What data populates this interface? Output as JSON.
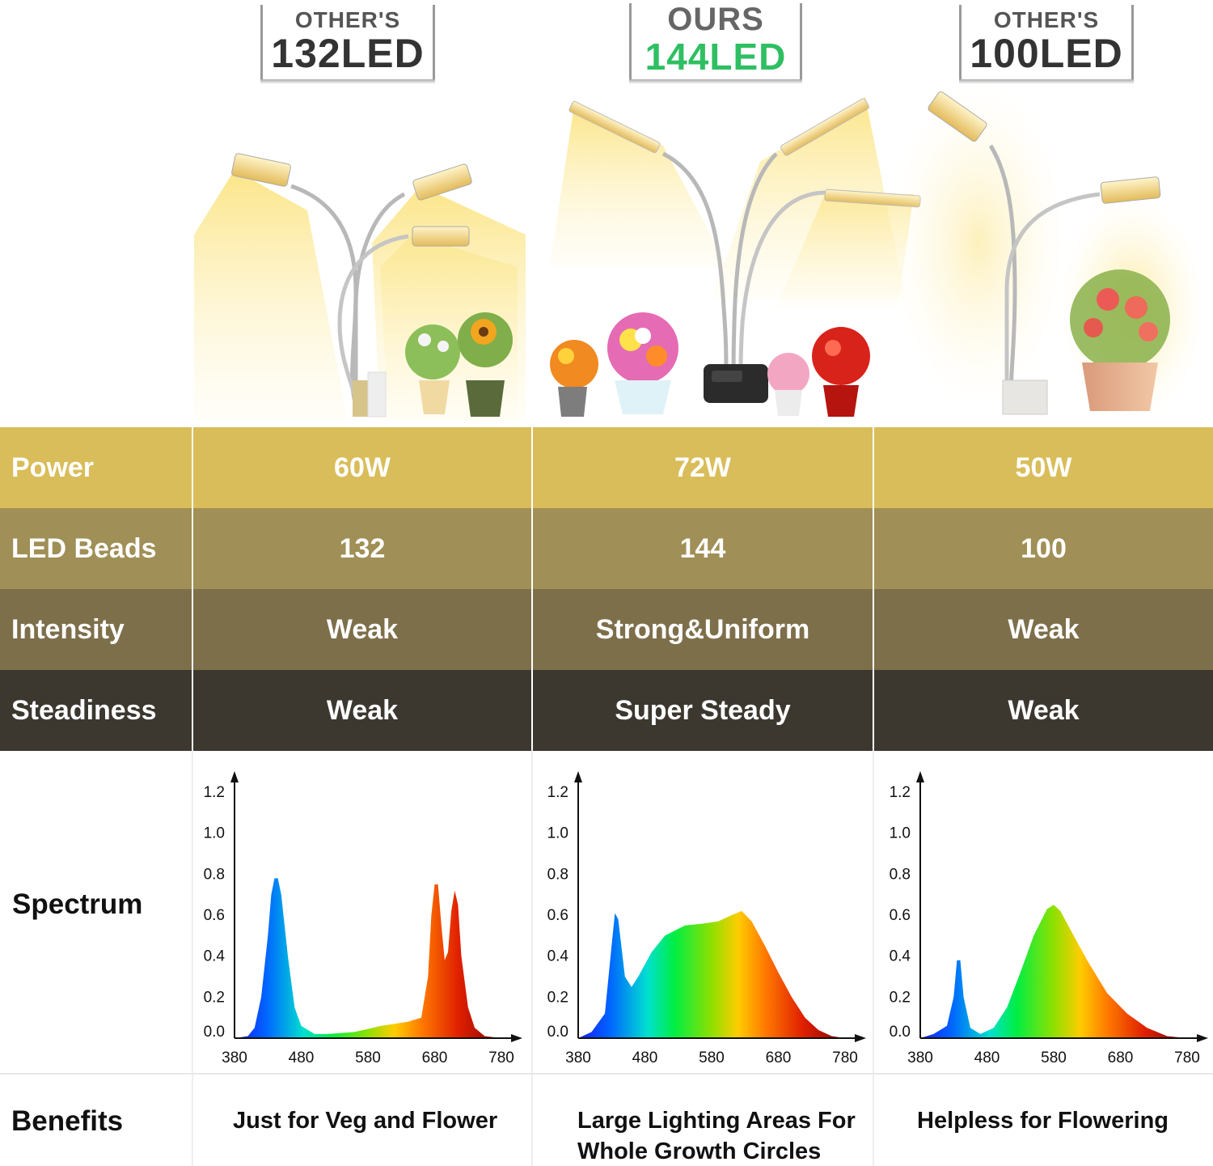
{
  "columns": [
    {
      "top": "OTHER'S",
      "bottom": "132LED",
      "ours": false
    },
    {
      "top": "OURS",
      "bottom": "144LED",
      "ours": true
    },
    {
      "top": "OTHER'S",
      "bottom": "100LED",
      "ours": false
    }
  ],
  "rows": [
    {
      "label": "Power",
      "values": [
        "60W",
        "72W",
        "50W"
      ],
      "color": "#d9bd5a"
    },
    {
      "label": "LED Beads",
      "values": [
        "132",
        "144",
        "100"
      ],
      "color": "#a08f56"
    },
    {
      "label": "Intensity",
      "values": [
        "Weak",
        "Strong&Uniform",
        "Weak"
      ],
      "color": "#7e6f4b"
    },
    {
      "label": "Steadiness",
      "values": [
        "Weak",
        "Super Steady",
        "Weak"
      ],
      "color": "#3c3830"
    }
  ],
  "spectrum_label": "Spectrum",
  "benefits_label": "Benefits",
  "benefits": [
    "Just for Veg and Flower",
    "Large Lighting Areas For Whole Growth Circles",
    "Helpless for Flowering"
  ],
  "chart_data": [
    {
      "type": "area",
      "x_ticks": [
        380,
        480,
        580,
        680,
        780
      ],
      "y_ticks": [
        0.0,
        0.2,
        0.4,
        0.6,
        0.8,
        1.0,
        1.2
      ],
      "xlim": [
        380,
        780
      ],
      "ylim": [
        0,
        1.2
      ],
      "points": [
        [
          380,
          0
        ],
        [
          400,
          0.01
        ],
        [
          410,
          0.05
        ],
        [
          420,
          0.2
        ],
        [
          430,
          0.5
        ],
        [
          435,
          0.7
        ],
        [
          440,
          0.78
        ],
        [
          445,
          0.78
        ],
        [
          450,
          0.7
        ],
        [
          460,
          0.4
        ],
        [
          470,
          0.15
        ],
        [
          480,
          0.06
        ],
        [
          500,
          0.02
        ],
        [
          520,
          0.02
        ],
        [
          560,
          0.03
        ],
        [
          600,
          0.06
        ],
        [
          640,
          0.08
        ],
        [
          660,
          0.1
        ],
        [
          670,
          0.3
        ],
        [
          675,
          0.6
        ],
        [
          680,
          0.75
        ],
        [
          685,
          0.75
        ],
        [
          690,
          0.55
        ],
        [
          695,
          0.38
        ],
        [
          700,
          0.42
        ],
        [
          705,
          0.62
        ],
        [
          710,
          0.72
        ],
        [
          715,
          0.65
        ],
        [
          720,
          0.4
        ],
        [
          730,
          0.15
        ],
        [
          740,
          0.05
        ],
        [
          755,
          0.01
        ],
        [
          780,
          0
        ]
      ]
    },
    {
      "type": "area",
      "x_ticks": [
        380,
        480,
        580,
        680,
        780
      ],
      "y_ticks": [
        0.0,
        0.2,
        0.4,
        0.6,
        0.8,
        1.0,
        1.2
      ],
      "xlim": [
        380,
        780
      ],
      "ylim": [
        0,
        1.2
      ],
      "points": [
        [
          380,
          0
        ],
        [
          400,
          0.03
        ],
        [
          420,
          0.12
        ],
        [
          430,
          0.45
        ],
        [
          435,
          0.61
        ],
        [
          440,
          0.58
        ],
        [
          450,
          0.3
        ],
        [
          460,
          0.25
        ],
        [
          470,
          0.3
        ],
        [
          490,
          0.42
        ],
        [
          510,
          0.5
        ],
        [
          540,
          0.55
        ],
        [
          570,
          0.56
        ],
        [
          590,
          0.57
        ],
        [
          610,
          0.6
        ],
        [
          625,
          0.62
        ],
        [
          640,
          0.57
        ],
        [
          660,
          0.45
        ],
        [
          680,
          0.32
        ],
        [
          700,
          0.2
        ],
        [
          720,
          0.1
        ],
        [
          740,
          0.04
        ],
        [
          760,
          0.01
        ],
        [
          780,
          0
        ]
      ]
    },
    {
      "type": "area",
      "x_ticks": [
        380,
        480,
        580,
        680,
        780
      ],
      "y_ticks": [
        0.0,
        0.2,
        0.4,
        0.6,
        0.8,
        1.0,
        1.2
      ],
      "xlim": [
        380,
        780
      ],
      "ylim": [
        0,
        1.2
      ],
      "points": [
        [
          380,
          0
        ],
        [
          400,
          0.02
        ],
        [
          420,
          0.06
        ],
        [
          430,
          0.2
        ],
        [
          435,
          0.38
        ],
        [
          440,
          0.38
        ],
        [
          445,
          0.2
        ],
        [
          455,
          0.05
        ],
        [
          470,
          0.02
        ],
        [
          490,
          0.05
        ],
        [
          510,
          0.15
        ],
        [
          530,
          0.32
        ],
        [
          550,
          0.5
        ],
        [
          570,
          0.63
        ],
        [
          580,
          0.65
        ],
        [
          590,
          0.62
        ],
        [
          610,
          0.5
        ],
        [
          630,
          0.38
        ],
        [
          660,
          0.22
        ],
        [
          690,
          0.12
        ],
        [
          720,
          0.05
        ],
        [
          750,
          0.01
        ],
        [
          780,
          0
        ]
      ]
    }
  ]
}
